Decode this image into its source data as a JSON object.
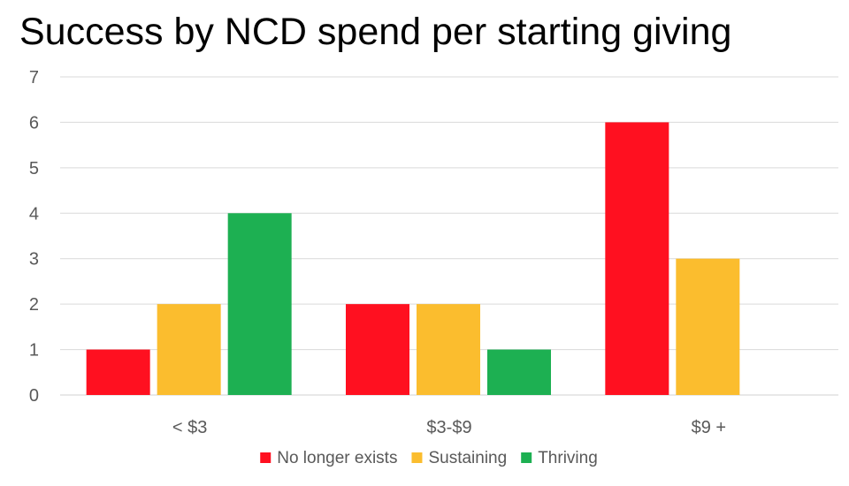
{
  "chart_data": {
    "type": "bar",
    "title": "Success by NCD spend per starting giving",
    "categories": [
      "< $3",
      "$3-$9",
      "$9 +"
    ],
    "series": [
      {
        "name": "No longer exists",
        "color": "#FF1020",
        "values": [
          1,
          2,
          6
        ]
      },
      {
        "name": "Sustaining",
        "color": "#FBBD2E",
        "values": [
          2,
          2,
          3
        ]
      },
      {
        "name": "Thriving",
        "color": "#1DB052",
        "values": [
          4,
          1,
          null
        ]
      }
    ],
    "xlabel": "",
    "ylabel": "",
    "ylim": [
      0,
      7
    ],
    "yticks": [
      "0",
      "1",
      "2",
      "3",
      "4",
      "5",
      "6",
      "7"
    ],
    "grid": true,
    "legend_position": "bottom"
  }
}
